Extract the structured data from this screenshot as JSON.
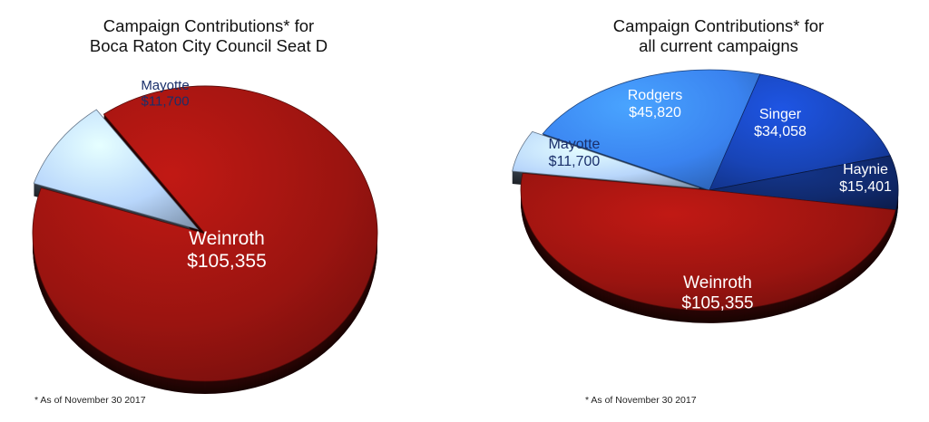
{
  "footnote": "* As of November 30 2017",
  "chart_data": [
    {
      "type": "pie",
      "title_lines": [
        "Campaign Contributions* for",
        "Boca Raton City Council Seat D"
      ],
      "currency": "$",
      "slices": [
        {
          "name": "Weinroth",
          "value": 105355,
          "display": "$105,355",
          "color": "#9a1410",
          "label_color": "#ffffff",
          "exploded": false
        },
        {
          "name": "Mayotte",
          "value": 11700,
          "display": "$11,700",
          "color": "#b8d6fb",
          "label_color": "#1a2f6a",
          "exploded": true
        }
      ]
    },
    {
      "type": "pie",
      "title_lines": [
        "Campaign Contributions* for",
        "all current campaigns"
      ],
      "currency": "$",
      "slices": [
        {
          "name": "Rodgers",
          "value": 45820,
          "display": "$45,820",
          "color": "#3a83f0",
          "label_color": "#ffffff",
          "exploded": false
        },
        {
          "name": "Singer",
          "value": 34058,
          "display": "$34,058",
          "color": "#1844b6",
          "label_color": "#ffffff",
          "exploded": false
        },
        {
          "name": "Haynie",
          "value": 15401,
          "display": "$15,401",
          "color": "#102a6e",
          "label_color": "#ffffff",
          "exploded": false
        },
        {
          "name": "Weinroth",
          "value": 105355,
          "display": "$105,355",
          "color": "#9a1410",
          "label_color": "#ffffff",
          "exploded": false
        },
        {
          "name": "Mayotte",
          "value": 11700,
          "display": "$11,700",
          "color": "#b8d6fb",
          "label_color": "#1a2f6a",
          "exploded": true
        }
      ]
    }
  ]
}
